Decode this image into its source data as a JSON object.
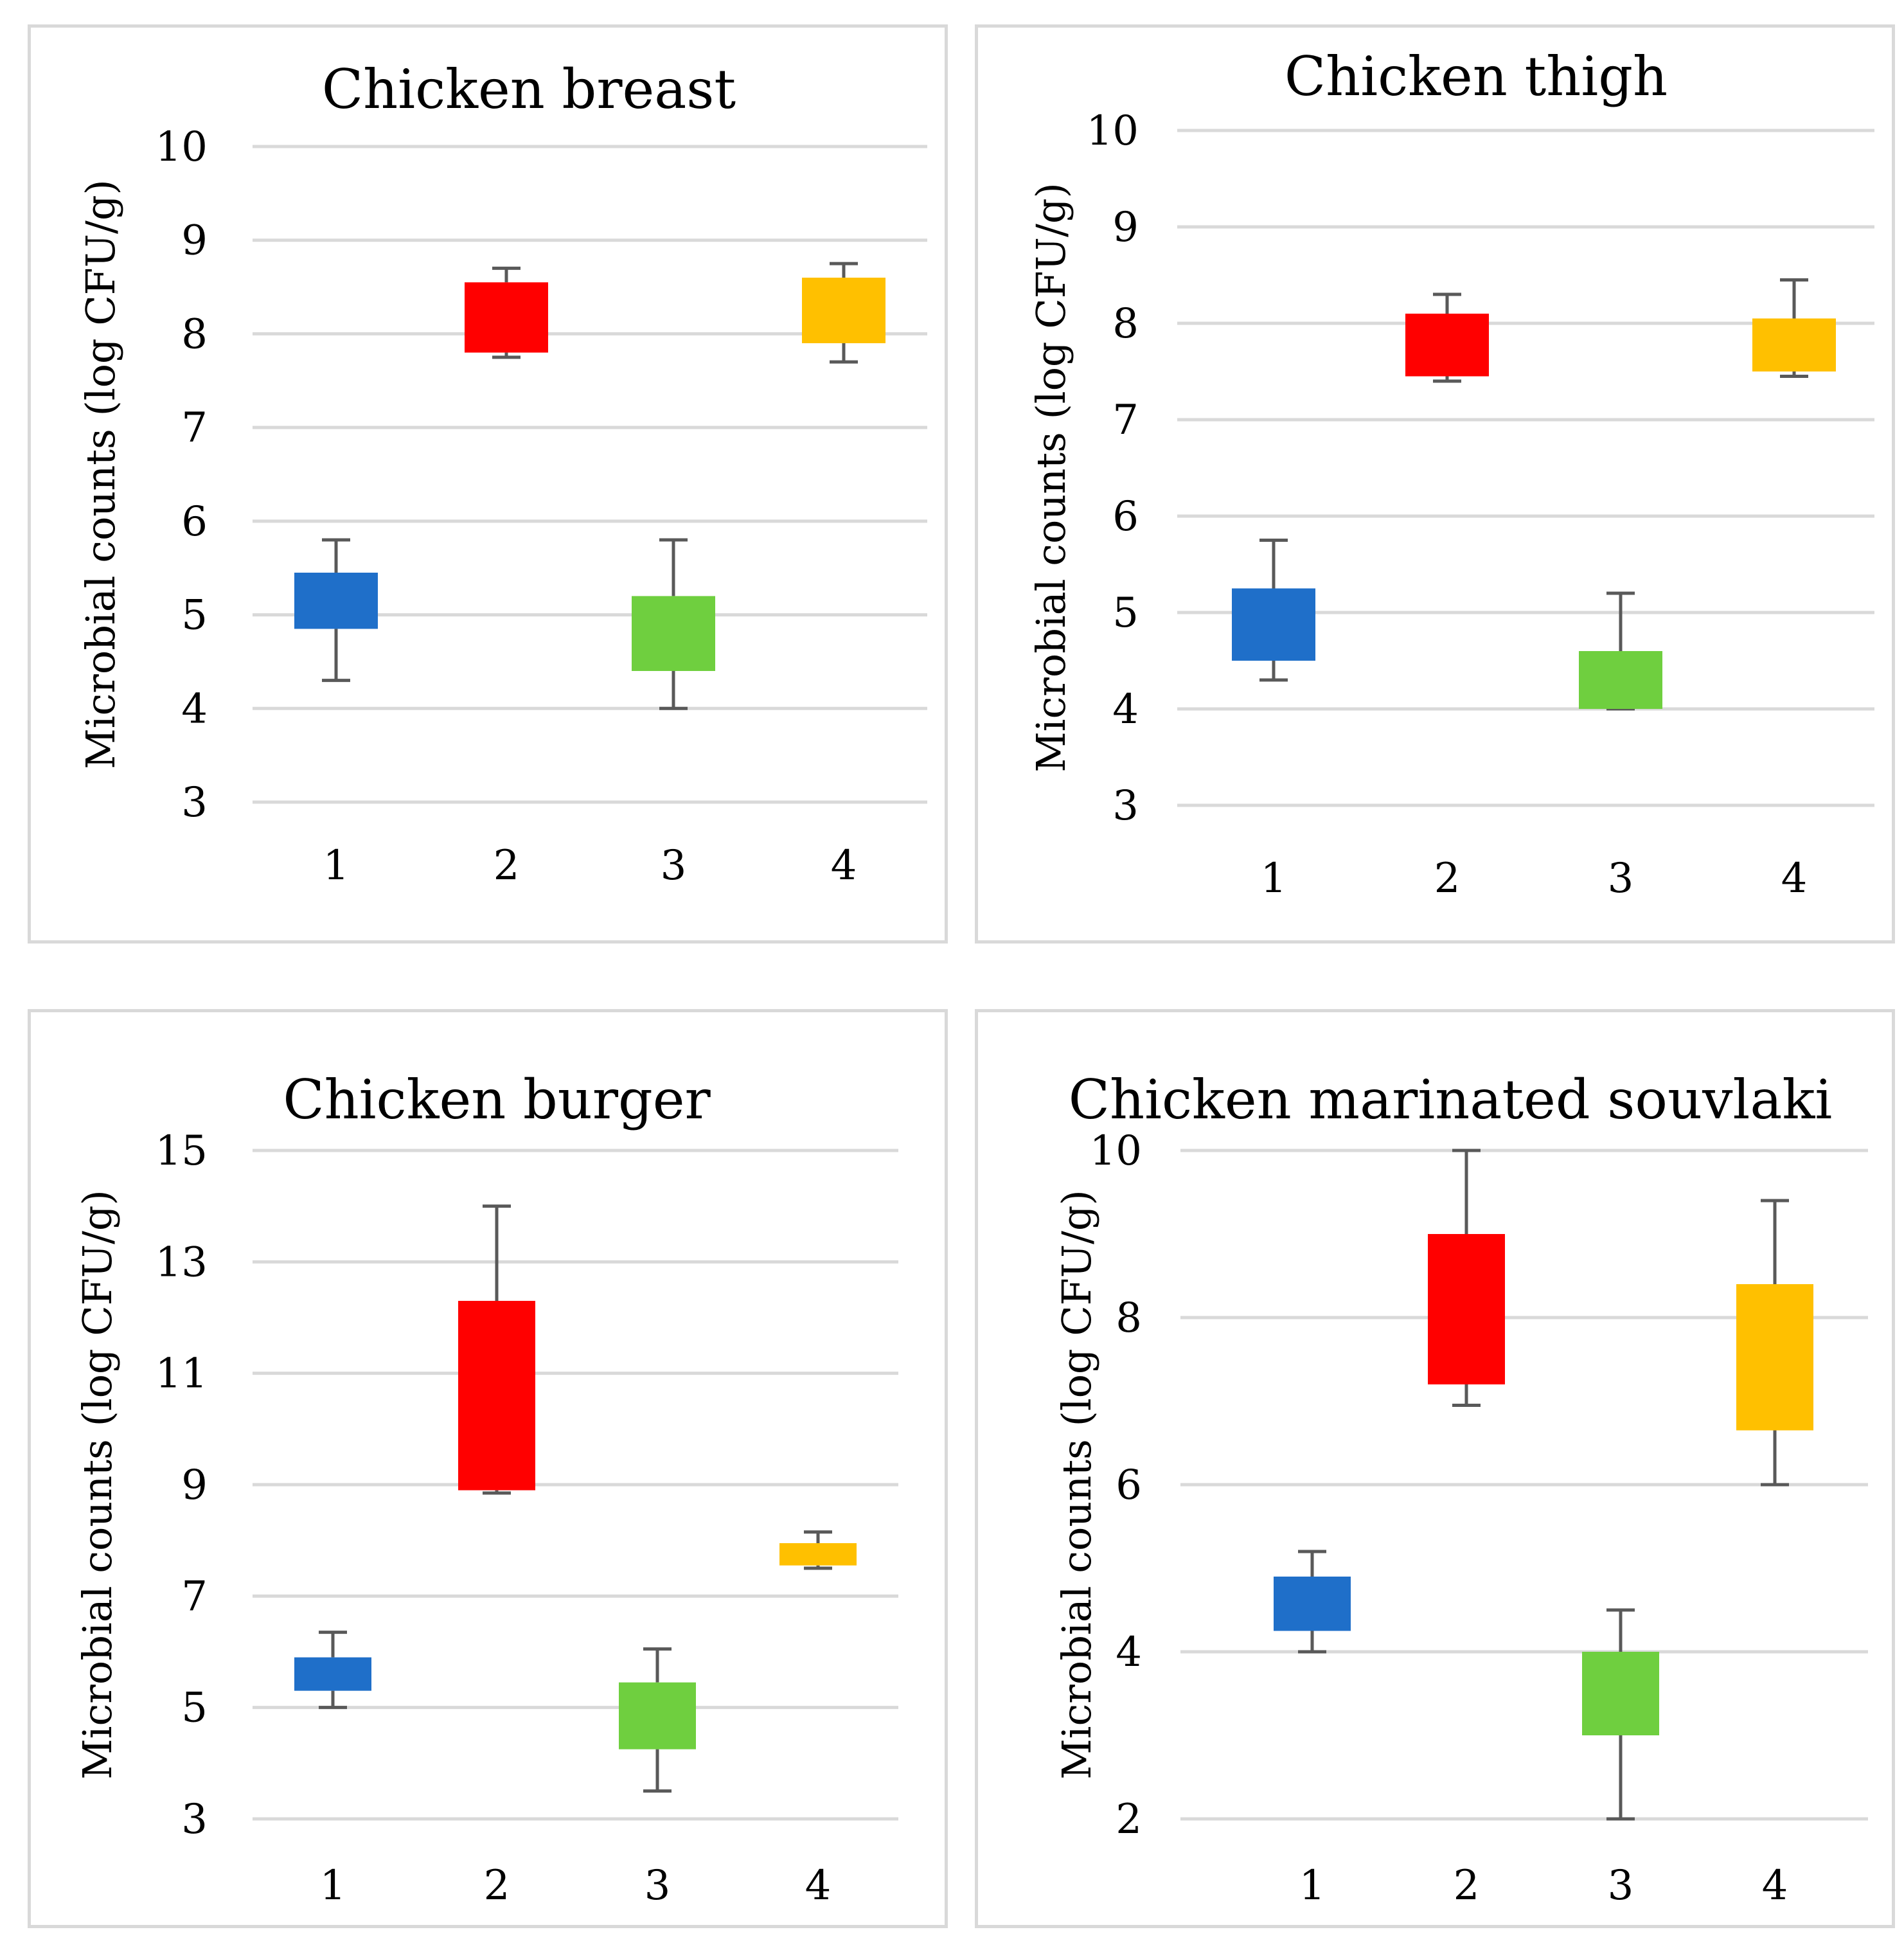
{
  "chart_data": [
    {
      "type": "box",
      "title": "Chicken breast",
      "xlabel": "",
      "ylabel": "Microbial counts (log CFU/g)",
      "ylim": [
        3,
        10
      ],
      "yticks": [
        3,
        4,
        5,
        6,
        7,
        8,
        9,
        10
      ],
      "categories": [
        "1",
        "2",
        "3",
        "4"
      ],
      "boxes": [
        {
          "category": "1",
          "min": 4.3,
          "q1": 4.85,
          "q3": 5.45,
          "max": 5.8,
          "color": "#1f6fc9"
        },
        {
          "category": "2",
          "min": 7.75,
          "q1": 7.8,
          "q3": 8.55,
          "max": 8.7,
          "color": "#ff0000"
        },
        {
          "category": "3",
          "min": 4.0,
          "q1": 4.4,
          "q3": 5.2,
          "max": 5.8,
          "color": "#6fcf3f"
        },
        {
          "category": "4",
          "min": 7.7,
          "q1": 7.9,
          "q3": 8.6,
          "max": 8.75,
          "color": "#ffc000"
        }
      ]
    },
    {
      "type": "box",
      "title": "Chicken thigh",
      "xlabel": "",
      "ylabel": "Microbial counts (log CFU/g)",
      "ylim": [
        3,
        10
      ],
      "yticks": [
        3,
        4,
        5,
        6,
        7,
        8,
        9,
        10
      ],
      "categories": [
        "1",
        "2",
        "3",
        "4"
      ],
      "boxes": [
        {
          "category": "1",
          "min": 4.3,
          "q1": 4.5,
          "q3": 5.25,
          "max": 5.75,
          "color": "#1f6fc9"
        },
        {
          "category": "2",
          "min": 7.4,
          "q1": 7.45,
          "q3": 8.1,
          "max": 8.3,
          "color": "#ff0000"
        },
        {
          "category": "3",
          "min": 4.0,
          "q1": 4.0,
          "q3": 4.6,
          "max": 5.2,
          "color": "#6fcf3f"
        },
        {
          "category": "4",
          "min": 7.45,
          "q1": 7.5,
          "q3": 8.05,
          "max": 8.45,
          "color": "#ffc000"
        }
      ]
    },
    {
      "type": "box",
      "title": "Chicken burger",
      "xlabel": "",
      "ylabel": "Microbial counts (log CFU/g)",
      "ylim": [
        3,
        15
      ],
      "yticks": [
        3,
        5,
        7,
        9,
        11,
        13,
        15
      ],
      "categories": [
        "1",
        "2",
        "3",
        "4"
      ],
      "boxes": [
        {
          "category": "1",
          "min": 5.0,
          "q1": 5.3,
          "q3": 5.9,
          "max": 6.35,
          "color": "#1f6fc9"
        },
        {
          "category": "2",
          "min": 8.85,
          "q1": 8.9,
          "q3": 12.3,
          "max": 14.0,
          "color": "#ff0000"
        },
        {
          "category": "3",
          "min": 3.5,
          "q1": 4.25,
          "q3": 5.45,
          "max": 6.05,
          "color": "#6fcf3f"
        },
        {
          "category": "4",
          "min": 7.5,
          "q1": 7.55,
          "q3": 7.95,
          "max": 8.15,
          "color": "#ffc000"
        }
      ]
    },
    {
      "type": "box",
      "title": "Chicken marinated souvlaki",
      "xlabel": "",
      "ylabel": "Microbial counts (log CFU/g)",
      "ylim": [
        2,
        10
      ],
      "yticks": [
        2,
        4,
        6,
        8,
        10
      ],
      "categories": [
        "1",
        "2",
        "3",
        "4"
      ],
      "boxes": [
        {
          "category": "1",
          "min": 4.0,
          "q1": 4.25,
          "q3": 4.9,
          "max": 5.2,
          "color": "#1f6fc9"
        },
        {
          "category": "2",
          "min": 6.95,
          "q1": 7.2,
          "q3": 9.0,
          "max": 10.0,
          "color": "#ff0000"
        },
        {
          "category": "3",
          "min": 2.0,
          "q1": 3.0,
          "q3": 4.0,
          "max": 4.5,
          "color": "#6fcf3f"
        },
        {
          "category": "4",
          "min": 6.0,
          "q1": 6.65,
          "q3": 8.4,
          "max": 9.4,
          "color": "#ffc000"
        }
      ]
    }
  ]
}
